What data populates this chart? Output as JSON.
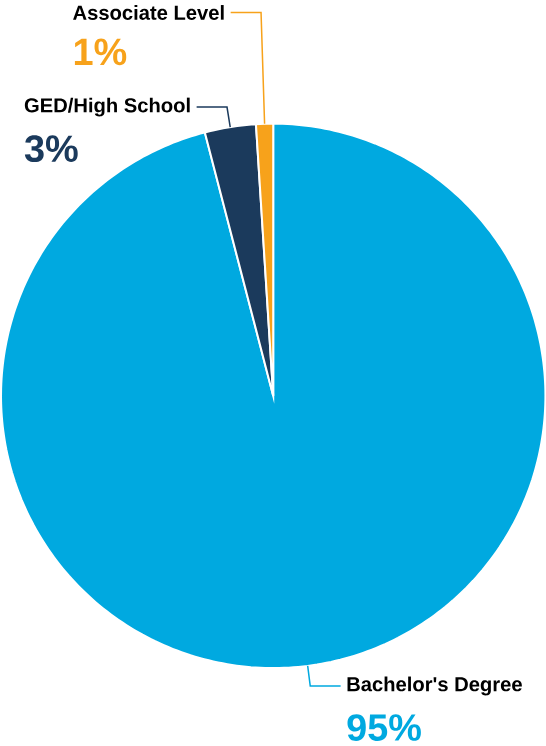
{
  "chart_data": {
    "type": "pie",
    "categories": [
      "Bachelor's Degree",
      "GED/High School",
      "Associate Level"
    ],
    "values": [
      95,
      3,
      1
    ],
    "colors": [
      "#00a9e0",
      "#1b3a5c",
      "#f7a21b"
    ],
    "value_labels": [
      "95%",
      "3%",
      "1%"
    ]
  }
}
